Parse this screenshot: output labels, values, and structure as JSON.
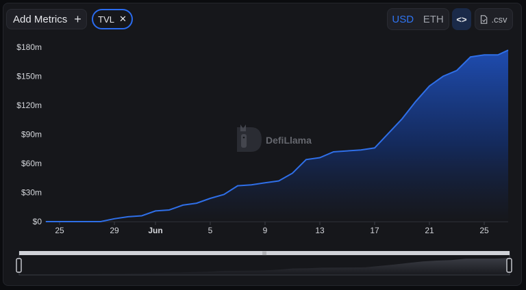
{
  "toolbar": {
    "add_metrics_label": "Add Metrics",
    "add_icon": "plus-icon",
    "metric_chip_label": "TVL",
    "metric_chip_remove_icon": "close-icon",
    "currency_options": [
      "USD",
      "ETH"
    ],
    "currency_selected": "USD",
    "embed_icon": "code-icon",
    "csv_label": ".csv",
    "csv_icon": "file-icon"
  },
  "watermark": {
    "text": "DefiLlama",
    "icon": "llama-logo"
  },
  "colors": {
    "accent": "#2f74f2",
    "line": "#2f6fe8",
    "background": "#16171b"
  },
  "chart_data": {
    "type": "area",
    "title": "",
    "xlabel": "",
    "ylabel": "",
    "y_ticks": [
      "$0",
      "$30m",
      "$60m",
      "$90m",
      "$120m",
      "$150m",
      "$180m"
    ],
    "x_ticks": [
      "25",
      "29",
      "Jun",
      "5",
      "9",
      "13",
      "17",
      "21",
      "25"
    ],
    "ylim": [
      0,
      180
    ],
    "grid": false,
    "legend": "none",
    "series": [
      {
        "x": [
          "May 24",
          "May 25",
          "May 26",
          "May 27",
          "May 28",
          "May 29",
          "May 30",
          "May 31",
          "Jun 1",
          "Jun 2",
          "Jun 3",
          "Jun 4",
          "Jun 5",
          "Jun 6",
          "Jun 7",
          "Jun 8",
          "Jun 9",
          "Jun 10",
          "Jun 11",
          "Jun 12",
          "Jun 13",
          "Jun 14",
          "Jun 15",
          "Jun 16",
          "Jun 17",
          "Jun 18",
          "Jun 19",
          "Jun 20",
          "Jun 21",
          "Jun 22",
          "Jun 23",
          "Jun 24",
          "Jun 25",
          "Jun 26",
          "Jun 26 (latest)"
        ],
        "values": [
          0,
          0,
          0,
          0,
          0,
          3,
          5,
          6,
          11,
          12,
          17,
          19,
          24,
          28,
          37,
          38,
          40,
          42,
          50,
          64,
          66,
          72,
          73,
          74,
          76,
          91,
          106,
          124,
          140,
          150,
          156,
          170,
          172,
          172,
          177
        ]
      }
    ]
  },
  "range_selector": {
    "handle_icon": "grip-icon"
  }
}
